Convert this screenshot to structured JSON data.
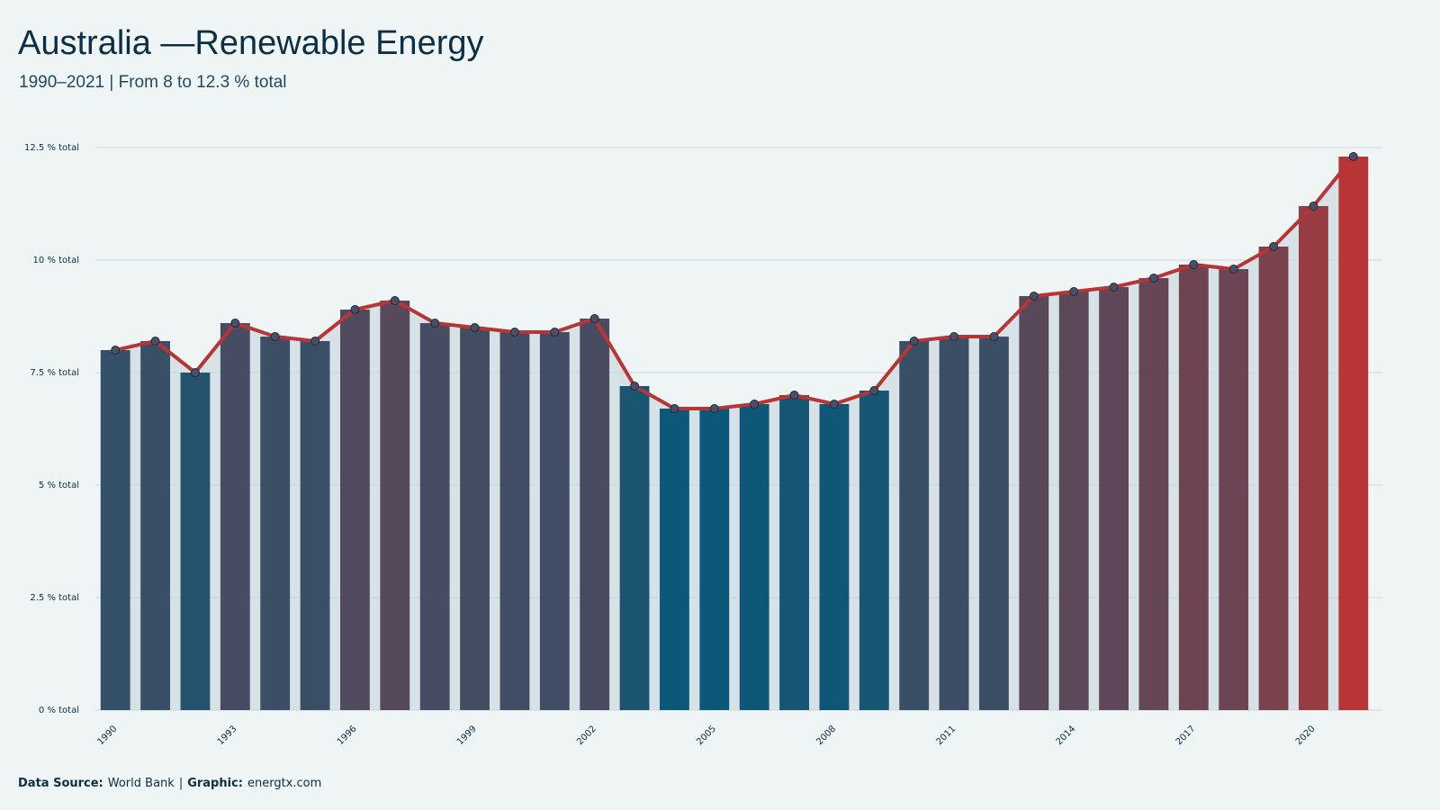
{
  "chart_data": {
    "type": "bar_line",
    "title": "Australia —Renewable Energy",
    "subtitle": "1990–2021 | From 8 to 12.3 % total",
    "categories": [
      "1990",
      null,
      null,
      "1993",
      null,
      null,
      "1996",
      null,
      null,
      "1999",
      null,
      null,
      "2002",
      null,
      null,
      "2005",
      null,
      null,
      "2008",
      null,
      null,
      "2011",
      null,
      null,
      "2014",
      null,
      null,
      "2017",
      null,
      null,
      "2020",
      null
    ],
    "values": [
      8.0,
      8.2,
      7.5,
      8.6,
      8.3,
      8.2,
      8.9,
      9.1,
      8.6,
      8.5,
      8.4,
      8.4,
      8.7,
      7.2,
      6.7,
      6.7,
      6.8,
      7.0,
      6.8,
      7.1,
      8.2,
      8.3,
      8.3,
      9.2,
      9.3,
      9.4,
      9.6,
      9.9,
      9.8,
      10.3,
      11.2,
      12.3
    ],
    "color_scale": [
      "#0b5878",
      "#b83535"
    ],
    "line_color": "#b83535",
    "area_color": "#d6e2e5",
    "ylim": [
      0,
      12.5
    ],
    "yticks": [
      {
        "value": 0,
        "label": "0 % total"
      },
      {
        "value": 2.5,
        "label": "2.5 % total"
      },
      {
        "value": 5,
        "label": "5 % total"
      },
      {
        "value": 7.5,
        "label": "7.5 % total"
      },
      {
        "value": 10,
        "label": "10 % total"
      },
      {
        "value": 12.5,
        "label": "12.5 % total"
      }
    ],
    "grid": true,
    "caption": [
      {
        "text": "Data Source:",
        "bold": true
      },
      {
        "text": "World Bank"
      },
      {
        "text": "|"
      },
      {
        "text": "Graphic:",
        "bold": true
      },
      {
        "text": "energtx.com"
      }
    ]
  }
}
